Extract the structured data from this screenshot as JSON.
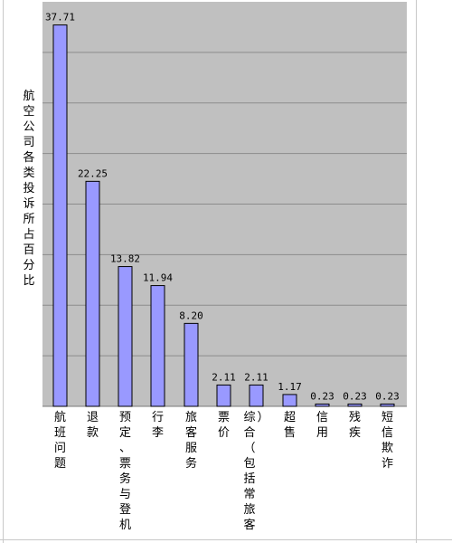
{
  "chart_data": {
    "type": "bar",
    "title": "",
    "ylabel": "航空公司各类投诉所占百分比",
    "xlabel": "",
    "ylim": [
      0,
      40
    ],
    "grid": true,
    "legend": "none",
    "categories": [
      "航班问题",
      "退款",
      "预定、票务与登机",
      "行李",
      "旅客服务",
      "票价",
      "综合（包括常旅客）",
      "超售",
      "信用",
      "残疾",
      "短信欺诈"
    ],
    "values": [
      37.71,
      22.25,
      13.82,
      11.94,
      8.2,
      2.11,
      2.11,
      1.17,
      0.23,
      0.23,
      0.23
    ],
    "value_labels": [
      "37.71",
      "22.25",
      "13.82",
      "11.94",
      "8.20",
      "2.11",
      "2.11",
      "1.17",
      "0.23",
      "0.23",
      "0.23"
    ]
  },
  "colors": {
    "plot_background": "#c0c0c0",
    "bar_fill": "#9999ff",
    "bar_stroke": "#000000",
    "gridline": "#8c8c8c",
    "text": "#000000"
  }
}
